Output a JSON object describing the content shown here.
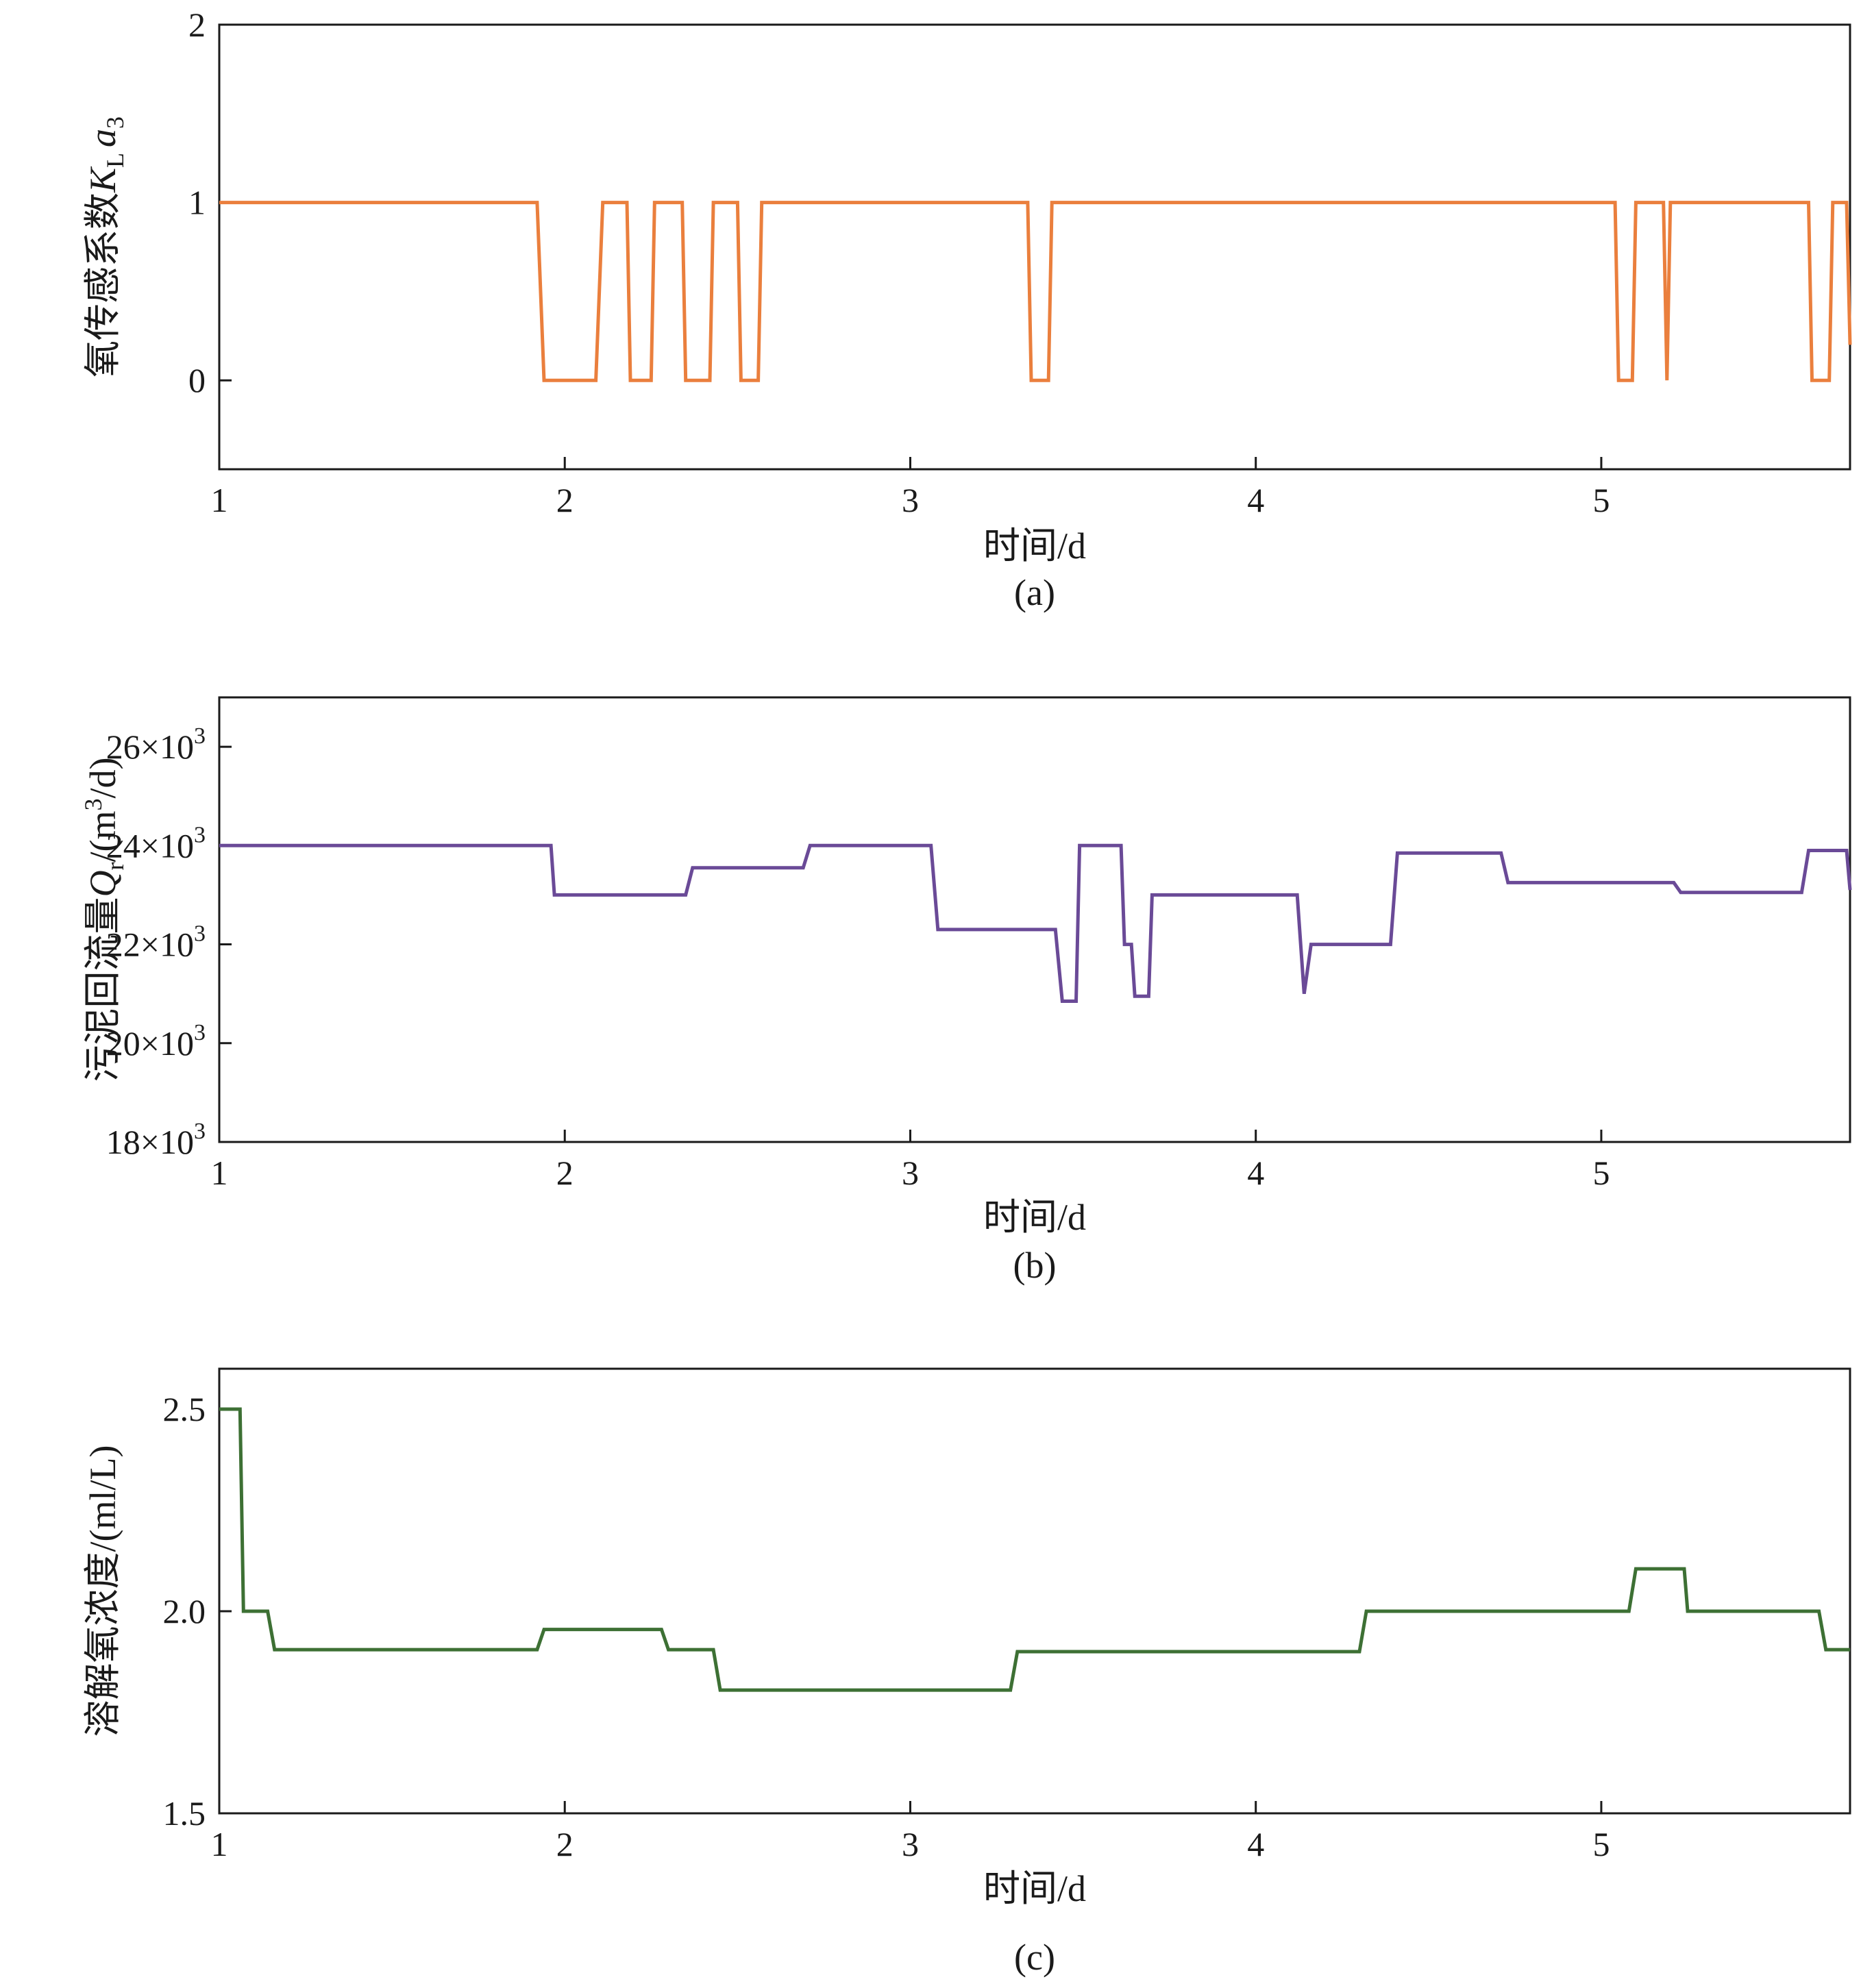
{
  "colors": {
    "panel_a": "#ea7f3d",
    "panel_b": "#6a4a97",
    "panel_c": "#3d7034",
    "axis": "#1a1a1a"
  },
  "chart_data": [
    {
      "type": "line",
      "step": true,
      "caption": "(a)",
      "xlabel": "时间/d",
      "ylabel_prefix": "氧传感系数",
      "ylabel_symbol": "K",
      "ylabel_sub": "L",
      "ylabel_symbol2": "a",
      "ylabel_sub2": "3",
      "xlim": [
        1,
        5.72
      ],
      "ylim": [
        -0.5,
        2
      ],
      "xticks": [
        1,
        2,
        3,
        4,
        5
      ],
      "xtick_labels": [
        "1",
        "2",
        "3",
        "4",
        "5"
      ],
      "yticks": [
        0,
        1,
        2
      ],
      "ytick_labels": [
        "0",
        "1",
        "2"
      ],
      "series": [
        {
          "name": "氧传感系数 KLa3",
          "x": [
            1.0,
            1.92,
            1.94,
            2.09,
            2.11,
            2.18,
            2.19,
            2.25,
            2.26,
            2.34,
            2.35,
            2.42,
            2.43,
            2.5,
            2.51,
            2.56,
            2.57,
            3.34,
            3.35,
            3.4,
            3.41,
            5.04,
            5.05,
            5.09,
            5.1,
            5.18,
            5.19,
            5.2,
            5.21,
            5.6,
            5.61,
            5.66,
            5.67,
            5.71,
            5.72
          ],
          "y": [
            1,
            1,
            0,
            0,
            1,
            1,
            0,
            0,
            1,
            1,
            0,
            0,
            1,
            1,
            0,
            0,
            1,
            1,
            0,
            0,
            1,
            1,
            0,
            0,
            1,
            1,
            0,
            1,
            1,
            1,
            0,
            0,
            1,
            1,
            0.2
          ]
        }
      ]
    },
    {
      "type": "line",
      "step": true,
      "caption": "(b)",
      "xlabel": "时间/d",
      "ylabel_prefix": "污泥回流量",
      "ylabel_symbol": "Q",
      "ylabel_sub": "r",
      "ylabel_unit_pre": "/(m",
      "ylabel_unit_sup": "3",
      "ylabel_unit_post": "/d)",
      "xlim": [
        1,
        5.72
      ],
      "ylim": [
        18000,
        27000
      ],
      "xticks": [
        1,
        2,
        3,
        4,
        5
      ],
      "xtick_labels": [
        "1",
        "2",
        "3",
        "4",
        "5"
      ],
      "yticks": [
        18000,
        20000,
        22000,
        24000,
        26000
      ],
      "ytick_mantissa": [
        "18×10",
        "20×10",
        "22×10",
        "24×10",
        "26×10"
      ],
      "ytick_exponent": "3",
      "series": [
        {
          "name": "污泥回流量 Qr",
          "x": [
            1.0,
            1.96,
            1.97,
            2.35,
            2.37,
            2.69,
            2.71,
            3.06,
            3.08,
            3.42,
            3.44,
            3.48,
            3.49,
            3.61,
            3.62,
            3.64,
            3.65,
            3.69,
            3.7,
            4.12,
            4.14,
            4.16,
            4.17,
            4.39,
            4.41,
            4.71,
            4.73,
            5.21,
            5.23,
            5.58,
            5.6,
            5.71,
            5.72
          ],
          "y": [
            24000,
            24000,
            23000,
            23000,
            23550,
            23550,
            24000,
            24000,
            22300,
            22300,
            20850,
            20850,
            24000,
            24000,
            22000,
            22000,
            20950,
            20950,
            23000,
            23000,
            21000,
            22000,
            22000,
            22000,
            23850,
            23850,
            23250,
            23250,
            23050,
            23050,
            23900,
            23900,
            23100
          ]
        }
      ]
    },
    {
      "type": "line",
      "step": true,
      "caption": "(c)",
      "xlabel": "时间/d",
      "ylabel": "溶解氧浓度/(ml/L)",
      "xlim": [
        1,
        5.72
      ],
      "ylim": [
        1.5,
        2.6
      ],
      "xticks": [
        1,
        2,
        3,
        4,
        5
      ],
      "xtick_labels": [
        "1",
        "2",
        "3",
        "4",
        "5"
      ],
      "yticks": [
        1.5,
        2.0,
        2.5
      ],
      "ytick_labels": [
        "1.5",
        "2.0",
        "2.5"
      ],
      "series": [
        {
          "name": "溶解氧浓度",
          "x": [
            1.0,
            1.06,
            1.07,
            1.14,
            1.16,
            1.92,
            1.94,
            2.28,
            2.3,
            2.43,
            2.45,
            3.29,
            3.31,
            4.3,
            4.32,
            5.08,
            5.1,
            5.24,
            5.25,
            5.63,
            5.65,
            5.72
          ],
          "y": [
            2.5,
            2.5,
            2.0,
            2.0,
            1.905,
            1.905,
            1.955,
            1.955,
            1.905,
            1.905,
            1.805,
            1.805,
            1.9,
            1.9,
            2.0,
            2.0,
            2.105,
            2.105,
            2.0,
            2.0,
            1.905,
            1.905
          ]
        }
      ]
    }
  ]
}
